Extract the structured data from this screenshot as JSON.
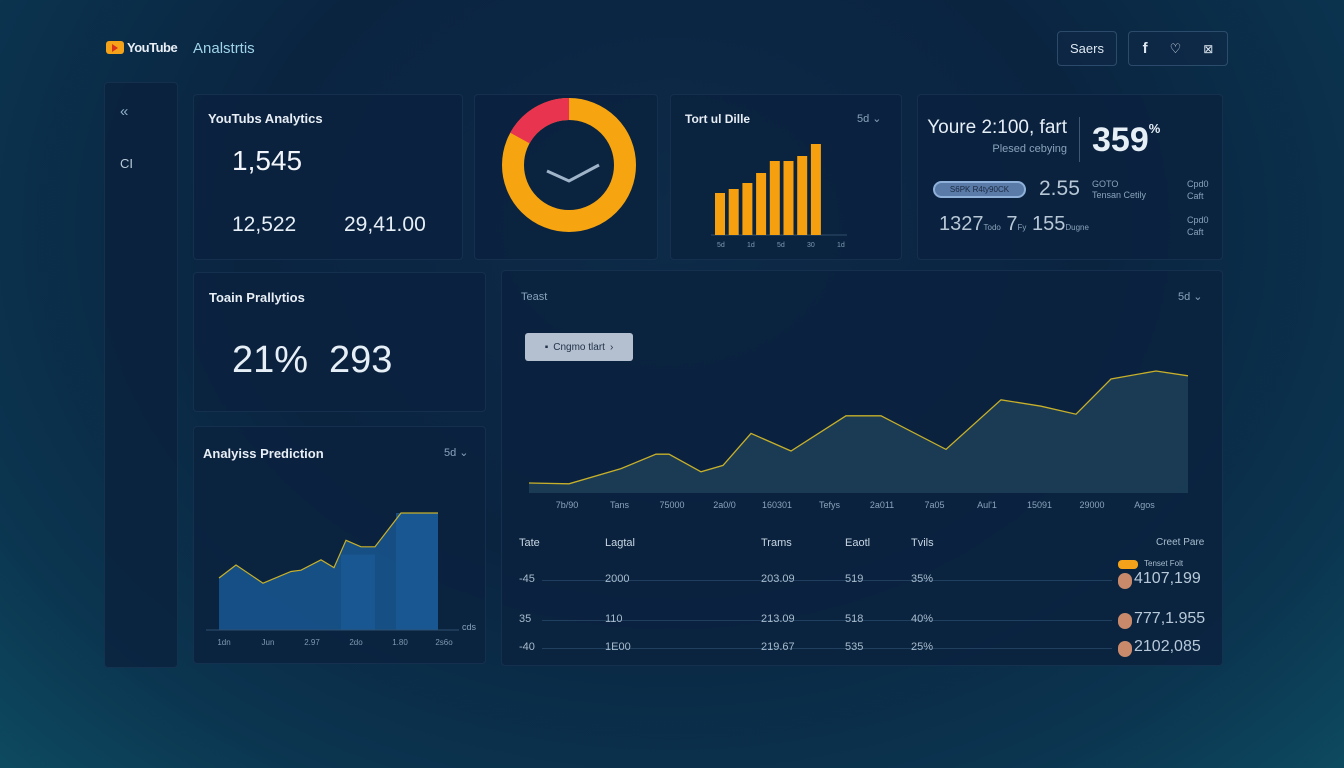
{
  "header": {
    "logo_text": "YouTube",
    "app_title": "Analstrtis",
    "search_label": "Saers",
    "icons": [
      "facebook-icon",
      "heart-icon",
      "mail-icon"
    ]
  },
  "sidebar": {
    "items": [
      {
        "icon": "back-arrow-icon",
        "label": "«"
      },
      {
        "icon": "c-icon",
        "label": "CI"
      }
    ]
  },
  "analytics_card": {
    "title": "YouTubs Analytics",
    "primary": "1,545",
    "secondary": [
      "12,522",
      "29,41.00"
    ]
  },
  "donut": {
    "segments": [
      {
        "color": "#e8344e",
        "value": 17
      },
      {
        "color": "#f6a410",
        "value": 83
      }
    ],
    "icon": "clock-icon"
  },
  "bar_card": {
    "title": "Tort ul Dille",
    "dropdown": "5d",
    "values": [
      42,
      46,
      52,
      62,
      74,
      74,
      79,
      91
    ],
    "x_labels": [
      "5d",
      "1d",
      "5d",
      "30",
      "1d"
    ],
    "color": "#f6a010"
  },
  "summary_card": {
    "headline": "Youre 2:100, fart",
    "subline": "Plesed cebying",
    "percent": "359",
    "percent_unit": "%",
    "pill": "S6PK R4ty90CK",
    "metric1": "2.55",
    "metric1_sub1": "GOTO",
    "metric1_sub2": "Tensan Cetily",
    "metric2": "1327",
    "metric2_unit": "Todo",
    "metric3": "7",
    "metric3_unit": "Fy",
    "metric4": "155",
    "metric4_unit": "Dugne",
    "side_labels": [
      "Cpd0",
      "Caft",
      "Cpd0",
      "Caft"
    ]
  },
  "prediction_card": {
    "title": "Toain Prallytios",
    "value1": "21%",
    "value2": "293"
  },
  "analysis_card": {
    "title": "Analyiss Prediction",
    "dropdown": "5d",
    "y_label": "cds",
    "x_labels": [
      "1dn",
      "Jun",
      "2.97",
      "2do",
      "1.80",
      "2s6o"
    ]
  },
  "chart_data": [
    {
      "type": "area",
      "title": "Teast",
      "dropdown": "5d",
      "button_label": "Cngmo tlart",
      "categories": [
        "7b/90",
        "Tans",
        "75000",
        "2a0/0",
        "160301",
        "Tefys",
        "2a011",
        "7a05",
        "Aul'1",
        "15091",
        "29000",
        "Agos"
      ],
      "x": [
        0,
        1,
        2,
        3,
        4,
        5,
        6,
        7,
        8,
        9,
        10,
        11,
        12,
        13,
        14,
        15,
        16,
        17
      ],
      "values": [
        5,
        4.5,
        14,
        23,
        23,
        12,
        16,
        36,
        25,
        47,
        47,
        26,
        57,
        53,
        48,
        70,
        75,
        72
      ],
      "line_color": "#c8b02a"
    },
    {
      "type": "area",
      "values": [
        40,
        50,
        36,
        45,
        46,
        54,
        48,
        69,
        64,
        64,
        90,
        90
      ],
      "bars": [
        {
          "from": 7,
          "to": 9,
          "value": 58
        },
        {
          "from": 10,
          "to": 11,
          "value": 90
        }
      ],
      "line_color": "#c8b02a"
    }
  ],
  "table": {
    "headers": [
      "Tate",
      "Lagtal",
      "Trams",
      "Eaotl",
      "Tvils"
    ],
    "right_header": "Creet Pare",
    "badge_label": "Tenset Folt",
    "rows": [
      {
        "c": [
          "-45",
          "2000",
          "203.09",
          "519",
          "35%"
        ],
        "total": "4107,199"
      },
      {
        "c": [
          "35",
          "110",
          "213.09",
          "518",
          "40%"
        ],
        "total": "777,1.955"
      },
      {
        "c": [
          "-40",
          "1E00",
          "219.67",
          "535",
          "25%"
        ],
        "total": "2102,085"
      }
    ]
  }
}
